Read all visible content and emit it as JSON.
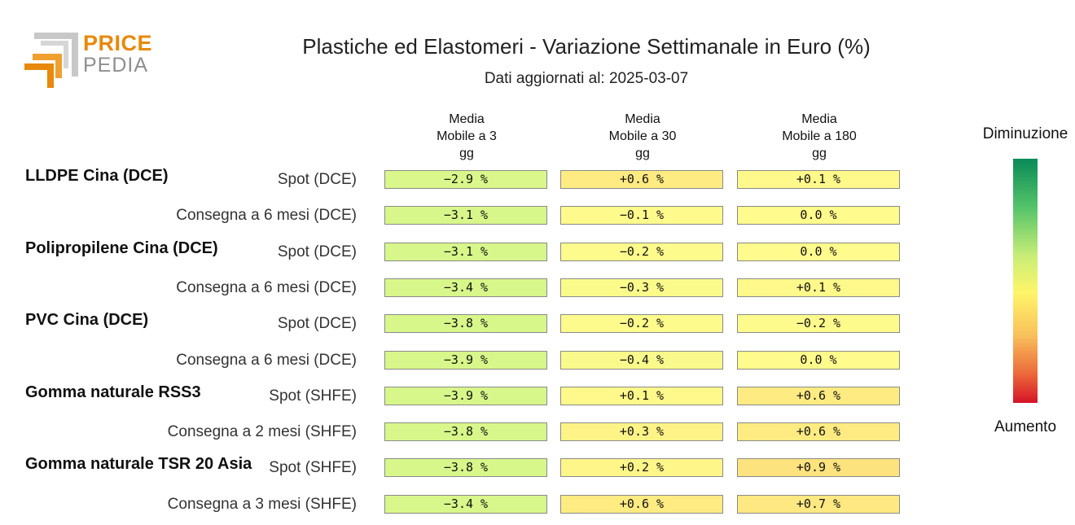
{
  "logo": {
    "word1": "PRICE",
    "word2": "PEDIA",
    "orange": "#e8890c",
    "gray": "#9a9a9a"
  },
  "title": "Plastiche ed Elastomeri - Variazione Settimanale in Euro (%)",
  "subtitle": "Dati aggiornati al: 2025-03-07",
  "legend": {
    "top": "Diminuzione",
    "bottom": "Aumento"
  },
  "chart_data": {
    "type": "heatmap",
    "columns": [
      "Media\nMobile a 3\ngg",
      "Media\nMobile a 30\ngg",
      "Media\nMobile a 180\ngg"
    ],
    "groups": [
      {
        "name": "LLDPE Cina (DCE)",
        "rows": [
          {
            "label": "Spot (DCE)",
            "values": [
              -2.9,
              0.6,
              0.1
            ],
            "text": [
              "−2.9 %",
              "+0.6 %",
              "+0.1 %"
            ]
          },
          {
            "label": "Consegna a 6 mesi (DCE)",
            "values": [
              -3.1,
              -0.1,
              0.0
            ],
            "text": [
              "−3.1 %",
              "−0.1 %",
              "0.0 %"
            ]
          }
        ]
      },
      {
        "name": "Polipropilene Cina (DCE)",
        "rows": [
          {
            "label": "Spot (DCE)",
            "values": [
              -3.1,
              -0.2,
              0.0
            ],
            "text": [
              "−3.1 %",
              "−0.2 %",
              "0.0 %"
            ]
          },
          {
            "label": "Consegna a 6 mesi (DCE)",
            "values": [
              -3.4,
              -0.3,
              0.1
            ],
            "text": [
              "−3.4 %",
              "−0.3 %",
              "+0.1 %"
            ]
          }
        ]
      },
      {
        "name": "PVC Cina (DCE)",
        "rows": [
          {
            "label": "Spot (DCE)",
            "values": [
              -3.8,
              -0.2,
              -0.2
            ],
            "text": [
              "−3.8 %",
              "−0.2 %",
              "−0.2 %"
            ]
          },
          {
            "label": "Consegna a 6 mesi (DCE)",
            "values": [
              -3.9,
              -0.4,
              0.0
            ],
            "text": [
              "−3.9 %",
              "−0.4 %",
              "0.0 %"
            ]
          }
        ]
      },
      {
        "name": "Gomma naturale RSS3",
        "rows": [
          {
            "label": "Spot (SHFE)",
            "values": [
              -3.9,
              0.1,
              0.6
            ],
            "text": [
              "−3.9 %",
              "+0.1 %",
              "+0.6 %"
            ]
          },
          {
            "label": "Consegna a 2 mesi (SHFE)",
            "values": [
              -3.8,
              0.3,
              0.6
            ],
            "text": [
              "−3.8 %",
              "+0.3 %",
              "+0.6 %"
            ]
          }
        ]
      },
      {
        "name": "Gomma naturale TSR 20 Asia",
        "rows": [
          {
            "label": "Spot (SHFE)",
            "values": [
              -3.8,
              0.2,
              0.9
            ],
            "text": [
              "−3.8 %",
              "+0.2 %",
              "+0.9 %"
            ]
          },
          {
            "label": "Consegna a 3 mesi (SHFE)",
            "values": [
              -3.4,
              0.6,
              0.7
            ],
            "text": [
              "−3.4 %",
              "+0.6 %",
              "+0.7 %"
            ]
          }
        ]
      }
    ],
    "colors": {
      "decrease_strong": "#0a8a57",
      "decrease": "#d8f78a",
      "neutral": "#fffb8c",
      "increase": "#fde07c",
      "increase_strong": "#d51328"
    }
  }
}
